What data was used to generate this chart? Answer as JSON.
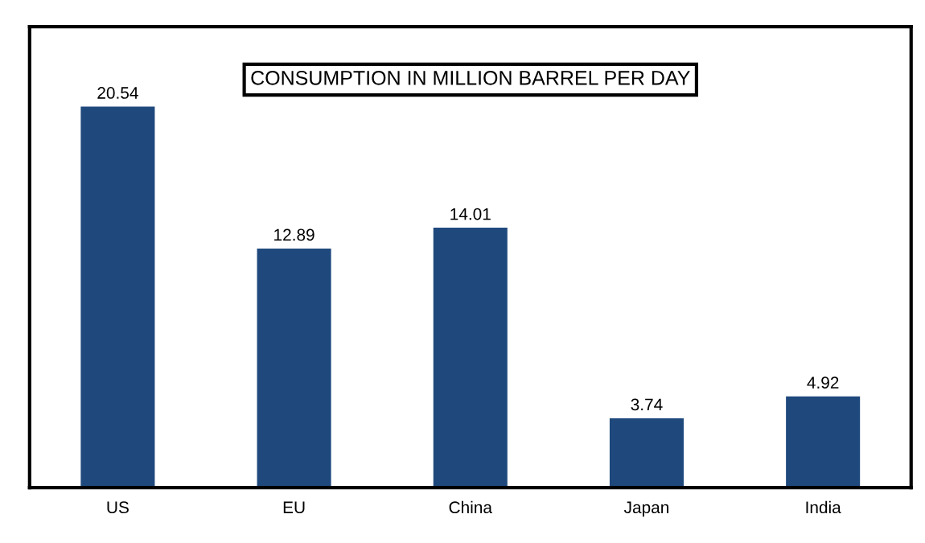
{
  "chart_data": {
    "type": "bar",
    "title": "CONSUMPTION IN MILLION BARREL PER DAY",
    "categories": [
      "US",
      "EU",
      "China",
      "Japan",
      "India"
    ],
    "values": [
      20.54,
      12.89,
      14.01,
      3.74,
      4.92
    ],
    "color": "#1f497d",
    "data_labels": true,
    "grid": false,
    "legend": false
  }
}
